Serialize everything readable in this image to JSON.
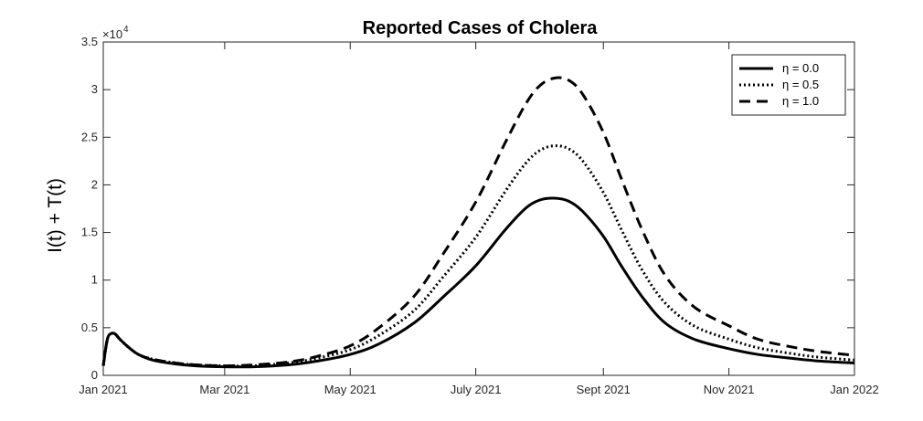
{
  "chart_data": {
    "type": "line",
    "title": "Reported Cases of Cholera",
    "xlabel": "",
    "ylabel": "I(t) + T(t)",
    "y_multiplier_label": "×10",
    "y_multiplier_exponent": "4",
    "xlim": [
      "2021-01-01",
      "2022-01-01"
    ],
    "ylim": [
      0,
      3.5
    ],
    "x_ticks": [
      {
        "date": "2021-01-01",
        "label": "Jan 2021"
      },
      {
        "date": "2021-03-01",
        "label": "Mar 2021"
      },
      {
        "date": "2021-05-01",
        "label": "May 2021"
      },
      {
        "date": "2021-07-01",
        "label": "July 2021"
      },
      {
        "date": "2021-09-01",
        "label": "Sept 2021"
      },
      {
        "date": "2021-11-01",
        "label": "Nov 2021"
      },
      {
        "date": "2022-01-01",
        "label": "Jan 2022"
      }
    ],
    "y_ticks": [
      {
        "value": 0,
        "label": "0"
      },
      {
        "value": 0.5,
        "label": "0.5"
      },
      {
        "value": 1,
        "label": "1"
      },
      {
        "value": 1.5,
        "label": "1.5"
      },
      {
        "value": 2,
        "label": "2"
      },
      {
        "value": 2.5,
        "label": "2.5"
      },
      {
        "value": 3,
        "label": "3"
      },
      {
        "value": 3.5,
        "label": "3.5"
      }
    ],
    "grid": false,
    "legend_position": "top-right",
    "series": [
      {
        "name": "η = 0.0",
        "style": "solid",
        "x": [
          "2021-01-01",
          "2021-01-03",
          "2021-01-05",
          "2021-01-07",
          "2021-01-09",
          "2021-01-13",
          "2021-01-18",
          "2021-01-25",
          "2021-02-05",
          "2021-02-15",
          "2021-03-01",
          "2021-03-15",
          "2021-04-01",
          "2021-04-15",
          "2021-05-01",
          "2021-05-15",
          "2021-06-01",
          "2021-06-15",
          "2021-07-01",
          "2021-07-15",
          "2021-07-25",
          "2021-08-01",
          "2021-08-08",
          "2021-08-15",
          "2021-08-22",
          "2021-09-01",
          "2021-09-10",
          "2021-09-20",
          "2021-10-01",
          "2021-10-15",
          "2021-11-01",
          "2021-11-15",
          "2021-12-01",
          "2021-12-15",
          "2022-01-01"
        ],
        "values": [
          0.1,
          0.38,
          0.44,
          0.43,
          0.38,
          0.3,
          0.22,
          0.16,
          0.12,
          0.1,
          0.09,
          0.09,
          0.11,
          0.15,
          0.22,
          0.33,
          0.55,
          0.82,
          1.15,
          1.52,
          1.75,
          1.84,
          1.86,
          1.83,
          1.72,
          1.46,
          1.14,
          0.82,
          0.55,
          0.38,
          0.28,
          0.22,
          0.18,
          0.15,
          0.13
        ]
      },
      {
        "name": "η = 0.5",
        "style": "dotted",
        "x": [
          "2021-01-01",
          "2021-01-03",
          "2021-01-05",
          "2021-01-07",
          "2021-01-09",
          "2021-01-13",
          "2021-01-18",
          "2021-01-25",
          "2021-02-05",
          "2021-02-15",
          "2021-03-01",
          "2021-03-15",
          "2021-04-01",
          "2021-04-15",
          "2021-05-01",
          "2021-05-15",
          "2021-06-01",
          "2021-06-15",
          "2021-07-01",
          "2021-07-15",
          "2021-07-25",
          "2021-08-01",
          "2021-08-08",
          "2021-08-15",
          "2021-08-22",
          "2021-09-01",
          "2021-09-10",
          "2021-09-20",
          "2021-10-01",
          "2021-10-15",
          "2021-11-01",
          "2021-11-15",
          "2021-12-01",
          "2021-12-15",
          "2022-01-01"
        ],
        "values": [
          0.1,
          0.38,
          0.44,
          0.43,
          0.38,
          0.3,
          0.22,
          0.17,
          0.13,
          0.11,
          0.1,
          0.1,
          0.13,
          0.18,
          0.27,
          0.42,
          0.68,
          1.03,
          1.45,
          1.92,
          2.22,
          2.36,
          2.41,
          2.38,
          2.25,
          1.92,
          1.52,
          1.1,
          0.76,
          0.52,
          0.38,
          0.29,
          0.23,
          0.19,
          0.16
        ]
      },
      {
        "name": "η = 1.0",
        "style": "dashed",
        "x": [
          "2021-01-01",
          "2021-01-03",
          "2021-01-05",
          "2021-01-07",
          "2021-01-09",
          "2021-01-13",
          "2021-01-18",
          "2021-01-25",
          "2021-02-05",
          "2021-02-15",
          "2021-03-01",
          "2021-03-15",
          "2021-04-01",
          "2021-04-15",
          "2021-05-01",
          "2021-05-15",
          "2021-06-01",
          "2021-06-15",
          "2021-07-01",
          "2021-07-15",
          "2021-07-25",
          "2021-08-01",
          "2021-08-08",
          "2021-08-15",
          "2021-08-22",
          "2021-09-01",
          "2021-09-10",
          "2021-09-20",
          "2021-10-01",
          "2021-10-15",
          "2021-11-01",
          "2021-11-15",
          "2021-12-01",
          "2021-12-15",
          "2022-01-01"
        ],
        "values": [
          0.1,
          0.38,
          0.44,
          0.43,
          0.38,
          0.3,
          0.22,
          0.17,
          0.13,
          0.11,
          0.1,
          0.11,
          0.14,
          0.2,
          0.31,
          0.5,
          0.83,
          1.27,
          1.82,
          2.43,
          2.84,
          3.04,
          3.12,
          3.1,
          2.95,
          2.55,
          2.05,
          1.52,
          1.05,
          0.72,
          0.52,
          0.38,
          0.3,
          0.25,
          0.21
        ]
      }
    ]
  }
}
